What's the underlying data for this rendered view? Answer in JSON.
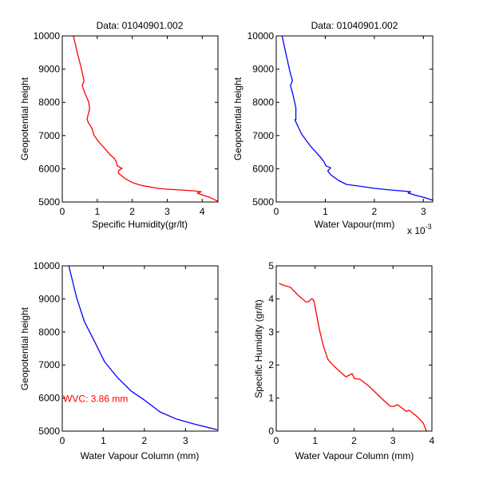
{
  "figure": {
    "background": "#ffffff"
  },
  "chart_data": [
    {
      "id": "top-left",
      "type": "line",
      "title": "Data: 01040901.002",
      "xlabel": "Specific Humidity(gr/lt)",
      "ylabel": "Geopotential height",
      "xlim": [
        0,
        4.45
      ],
      "ylim": [
        5000,
        10000
      ],
      "xticks": [
        0,
        1,
        2,
        3,
        4
      ],
      "xtick_labels": [
        "0",
        "1",
        "2",
        "3",
        "4"
      ],
      "yticks": [
        5000,
        6000,
        7000,
        8000,
        9000,
        10000
      ],
      "ytick_labels": [
        "5000",
        "6000",
        "7000",
        "8000",
        "9000",
        "10000"
      ],
      "x_exponent_label": "",
      "annotation": null,
      "grid": false,
      "series": [
        {
          "name": "specific-humidity-profile",
          "color": "#ff0000",
          "x": [
            0.32,
            0.43,
            0.55,
            0.62,
            0.57,
            0.64,
            0.76,
            0.78,
            0.71,
            0.74,
            0.84,
            0.91,
            1.03,
            1.19,
            1.35,
            1.48,
            1.55,
            1.57,
            1.71,
            1.62,
            1.6,
            1.8,
            2.03,
            2.26,
            2.72,
            3.01,
            3.4,
            3.77,
            3.97,
            3.86,
            4.0,
            4.22,
            4.45
          ],
          "y": [
            10000,
            9500,
            9000,
            8650,
            8500,
            8300,
            8000,
            7800,
            7500,
            7400,
            7236,
            7000,
            6830,
            6640,
            6440,
            6320,
            6200,
            6090,
            6010,
            5960,
            5870,
            5700,
            5575,
            5500,
            5410,
            5385,
            5360,
            5335,
            5310,
            5265,
            5215,
            5140,
            5020
          ]
        }
      ]
    },
    {
      "id": "top-right",
      "type": "line",
      "title": "Data: 01040901.002",
      "xlabel": "Water Vapour(mm)",
      "ylabel": "Geopotential height",
      "xlim": [
        0,
        3.19
      ],
      "ylim": [
        5000,
        10000
      ],
      "xticks": [
        0,
        1,
        2,
        3
      ],
      "xtick_labels": [
        "0",
        "1",
        "2",
        "3"
      ],
      "yticks": [
        5000,
        6000,
        7000,
        8000,
        9000,
        10000
      ],
      "ytick_labels": [
        "5000",
        "6000",
        "7000",
        "8000",
        "9000",
        "10000"
      ],
      "x_exponent_label": "x 10",
      "x_exponent_power": "-3",
      "annotation": null,
      "grid": false,
      "series": [
        {
          "name": "water-vapour-profile",
          "color": "#0000ff",
          "x": [
            0.12,
            0.2,
            0.28,
            0.33,
            0.29,
            0.33,
            0.4,
            0.4,
            0.38,
            0.52,
            0.7,
            0.9,
            0.98,
            1.01,
            1.11,
            1.05,
            1.11,
            1.27,
            1.43,
            1.68,
            2.0,
            2.33,
            2.74,
            2.69,
            2.82,
            3.01,
            3.2
          ],
          "y": [
            10000,
            9450,
            8920,
            8650,
            8510,
            8300,
            7840,
            7480,
            7475,
            7040,
            6680,
            6350,
            6200,
            6090,
            6030,
            5940,
            5820,
            5650,
            5530,
            5480,
            5410,
            5360,
            5310,
            5270,
            5210,
            5140,
            5050
          ]
        }
      ]
    },
    {
      "id": "bottom-left",
      "type": "line",
      "title": "",
      "xlabel": "Water Vapour Column (mm)",
      "ylabel": "Geopotential height",
      "xlim": [
        0,
        3.79
      ],
      "ylim": [
        5000,
        10000
      ],
      "xticks": [
        0,
        1,
        2,
        3
      ],
      "xtick_labels": [
        "0",
        "1",
        "2",
        "3"
      ],
      "yticks": [
        5000,
        6000,
        7000,
        8000,
        9000,
        10000
      ],
      "ytick_labels": [
        "5000",
        "6000",
        "7000",
        "8000",
        "9000",
        "10000"
      ],
      "x_exponent_label": "",
      "annotation": {
        "text": "WVC: 3.86 mm",
        "x": 0,
        "y": 6000,
        "color": "#ff0000"
      },
      "grid": false,
      "series": [
        {
          "name": "water-vapour-column-profile",
          "color": "#0000ff",
          "x": [
            0.16,
            0.35,
            0.54,
            0.77,
            1.03,
            1.35,
            1.68,
            2.0,
            2.38,
            2.77,
            3.22,
            3.77
          ],
          "y": [
            10000,
            9035,
            8310,
            7750,
            7100,
            6610,
            6210,
            5940,
            5580,
            5370,
            5210,
            5040
          ]
        }
      ]
    },
    {
      "id": "bottom-right",
      "type": "line",
      "title": "",
      "xlabel": "Water Vapour Column (mm)",
      "ylabel": "Specific Humidity (gr/lt)",
      "xlim": [
        0,
        4
      ],
      "ylim": [
        0,
        5
      ],
      "xticks": [
        0,
        1,
        2,
        3,
        4
      ],
      "xtick_labels": [
        "0",
        "1",
        "2",
        "3",
        "4"
      ],
      "yticks": [
        0,
        1,
        2,
        3,
        4,
        5
      ],
      "ytick_labels": [
        "0",
        "1",
        "2",
        "3",
        "4",
        "5"
      ],
      "x_exponent_label": "",
      "annotation": null,
      "grid": false,
      "series": [
        {
          "name": "humidity-vs-column",
          "color": "#ff0000",
          "x": [
            0.07,
            0.17,
            0.37,
            0.56,
            0.76,
            0.82,
            0.92,
            0.97,
            1.03,
            1.12,
            1.22,
            1.33,
            1.47,
            1.63,
            1.79,
            1.95,
            2.01,
            2.15,
            2.36,
            2.56,
            2.77,
            2.93,
            3.03,
            3.12,
            3.34,
            3.42,
            3.63,
            3.78,
            3.86
          ],
          "y": [
            4.47,
            4.42,
            4.35,
            4.11,
            3.91,
            3.91,
            4.01,
            3.94,
            3.57,
            3.02,
            2.54,
            2.17,
            1.98,
            1.81,
            1.64,
            1.74,
            1.59,
            1.57,
            1.38,
            1.16,
            0.92,
            0.75,
            0.75,
            0.8,
            0.6,
            0.63,
            0.43,
            0.24,
            0.0
          ]
        }
      ]
    }
  ]
}
